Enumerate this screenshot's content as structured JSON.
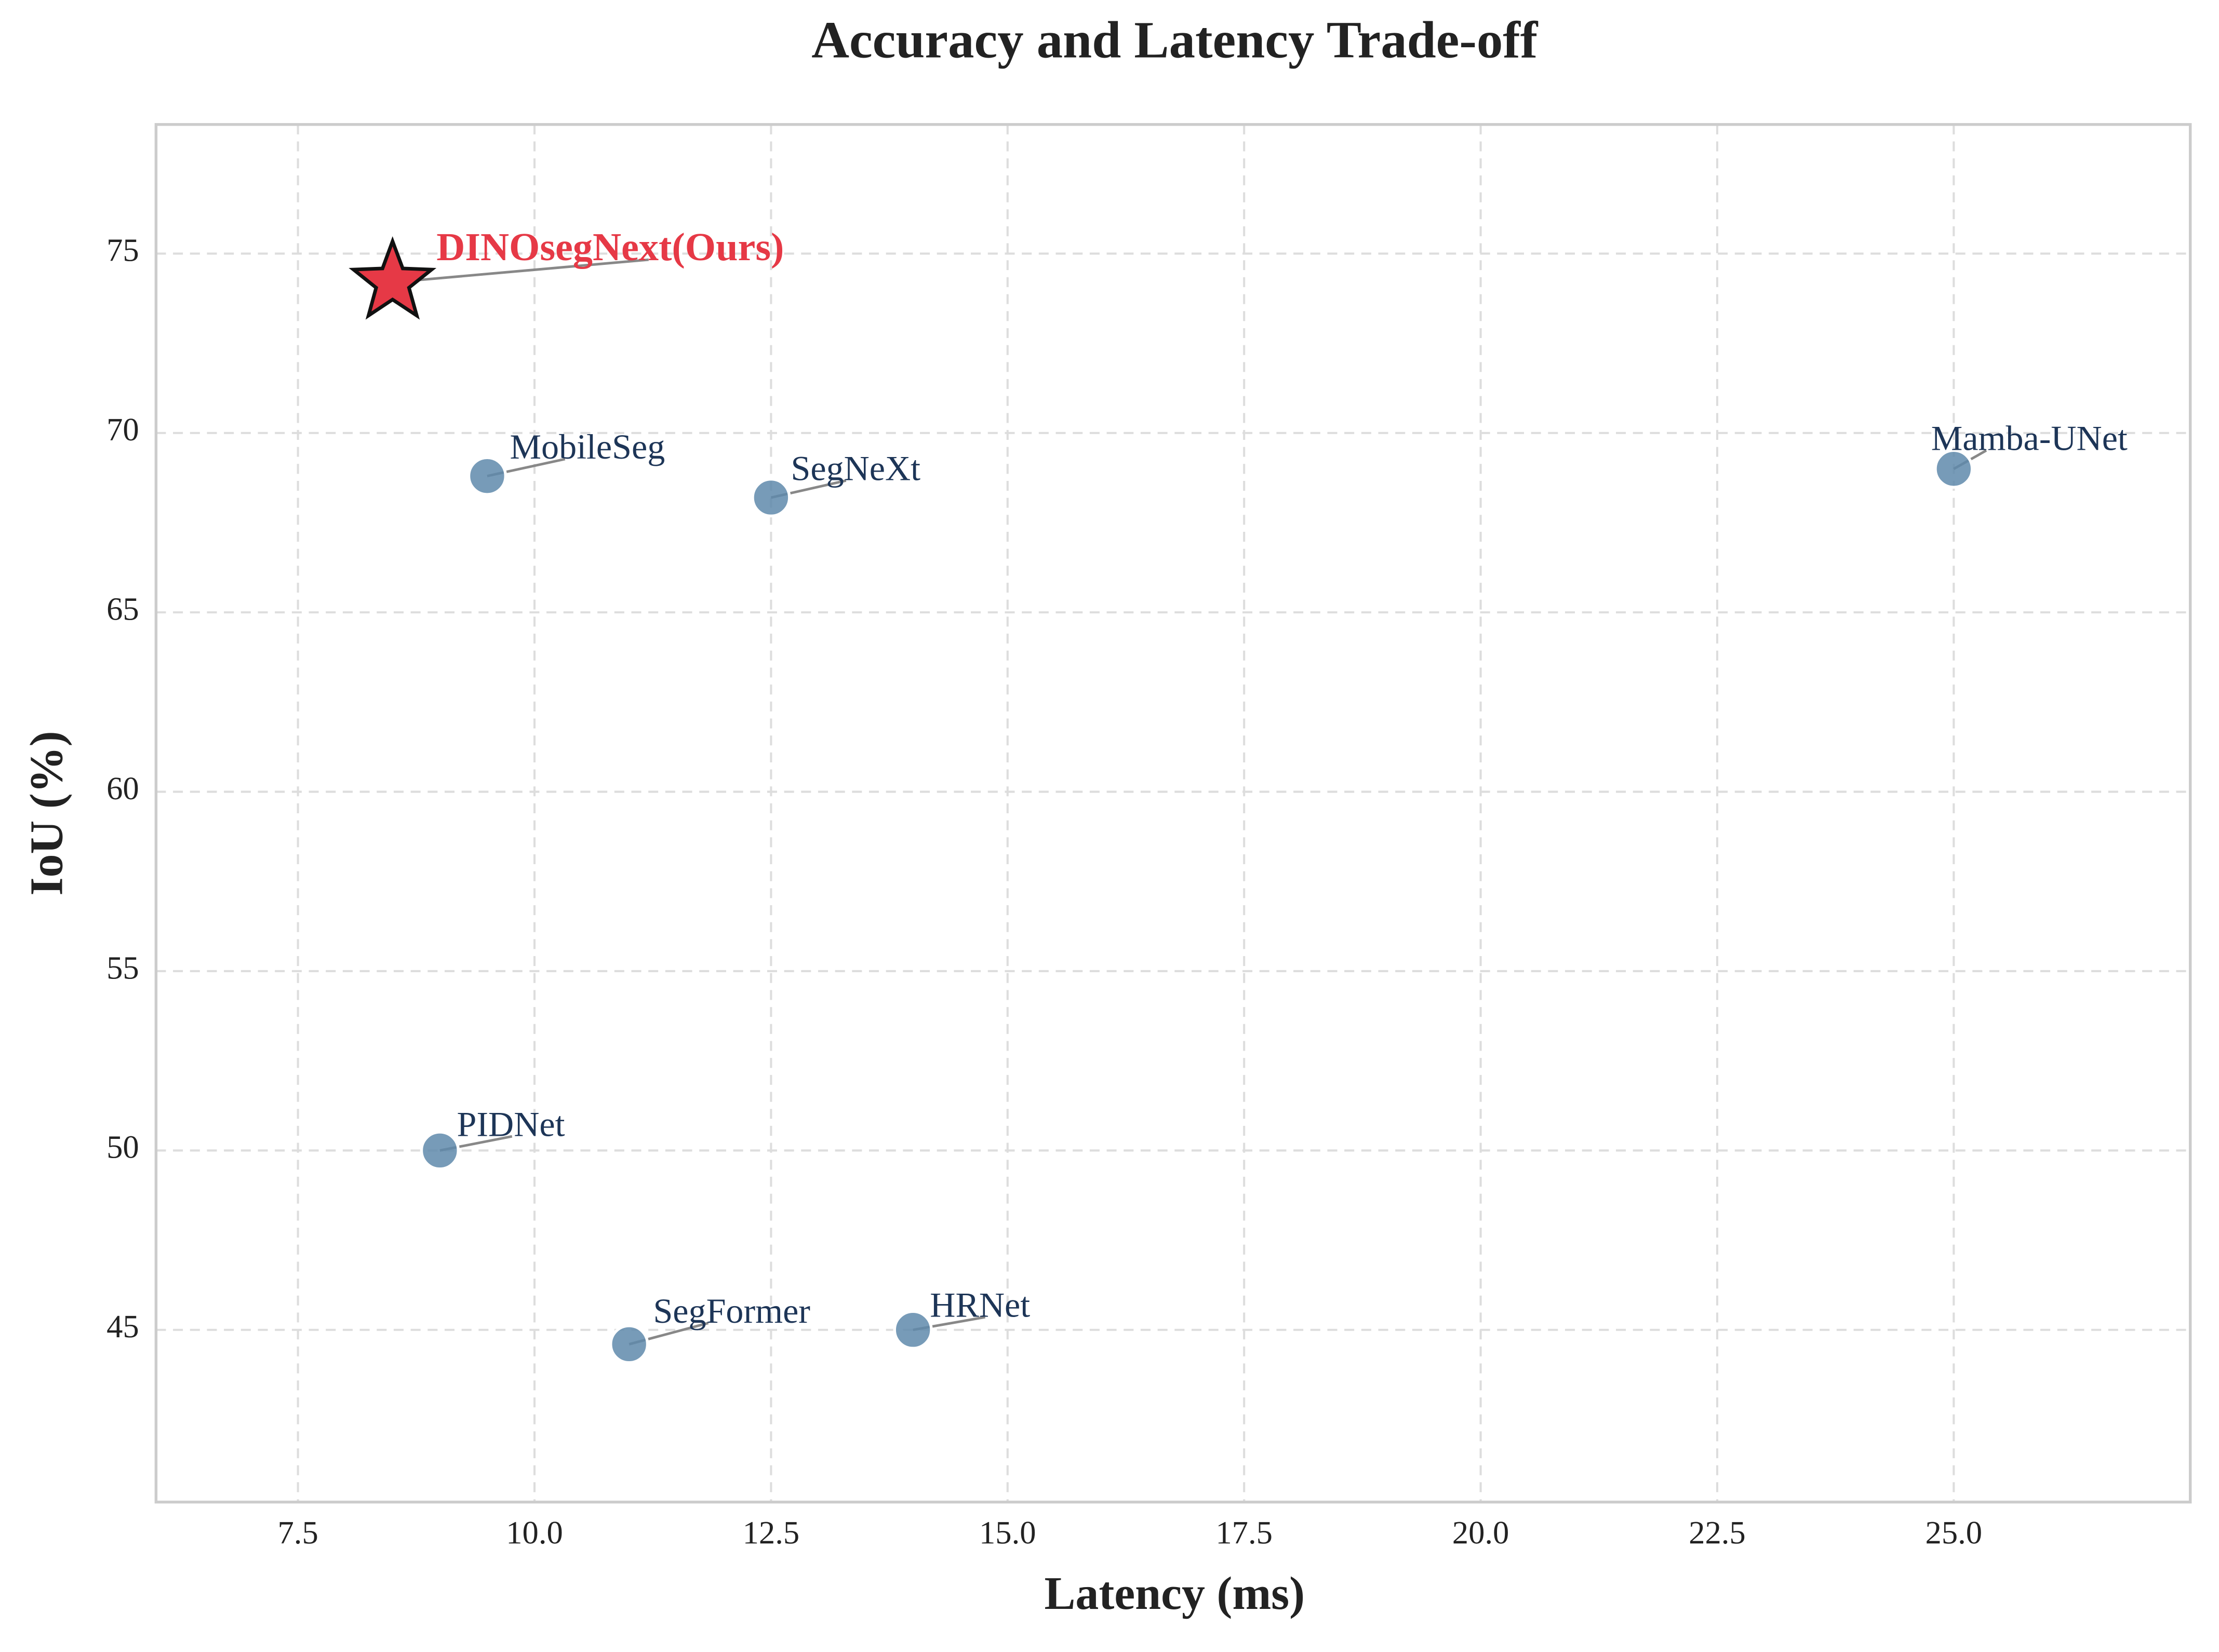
{
  "chart_data": {
    "type": "scatter",
    "title": "Accuracy and Latency Trade-off",
    "x_label": "Latency (ms)",
    "y_label": "IoU (%)",
    "labels": [
      "DINOsegNext(Ours)",
      "MobileSeg",
      "SegNeXt",
      "Mamba-UNet",
      "PIDNet",
      "SegFormer",
      "HRNet"
    ],
    "x": [
      8.5,
      9.5,
      12.5,
      25.0,
      9.0,
      11.0,
      14.0
    ],
    "values": [
      74.2,
      68.8,
      68.2,
      69.0,
      50.0,
      44.6,
      45.0
    ],
    "markers": [
      "star",
      "circle",
      "circle",
      "circle",
      "circle",
      "circle",
      "circle"
    ],
    "colors": [
      "#e63946",
      "#5f8aab",
      "#5f8aab",
      "#5f8aab",
      "#5f8aab",
      "#5f8aab",
      "#5f8aab"
    ],
    "label_colors": [
      "#e63946",
      "#1d3557",
      "#1d3557",
      "#1d3557",
      "#1d3557",
      "#1d3557",
      "#1d3557"
    ],
    "xlim": [
      6.0,
      27.5
    ],
    "ylim": [
      40.2,
      78.6
    ],
    "xticks": [
      {
        "value": 7.5,
        "label": "7.5"
      },
      {
        "value": 10,
        "label": "10.0"
      },
      {
        "value": 12.5,
        "label": "12.5"
      },
      {
        "value": 15,
        "label": "15.0"
      },
      {
        "value": 17.5,
        "label": "17.5"
      },
      {
        "value": 20,
        "label": "20.0"
      },
      {
        "value": 22.5,
        "label": "22.5"
      },
      {
        "value": 25,
        "label": "25.0"
      }
    ],
    "yticks": [
      45,
      50,
      55,
      60,
      65,
      70,
      75
    ],
    "grid": true
  }
}
